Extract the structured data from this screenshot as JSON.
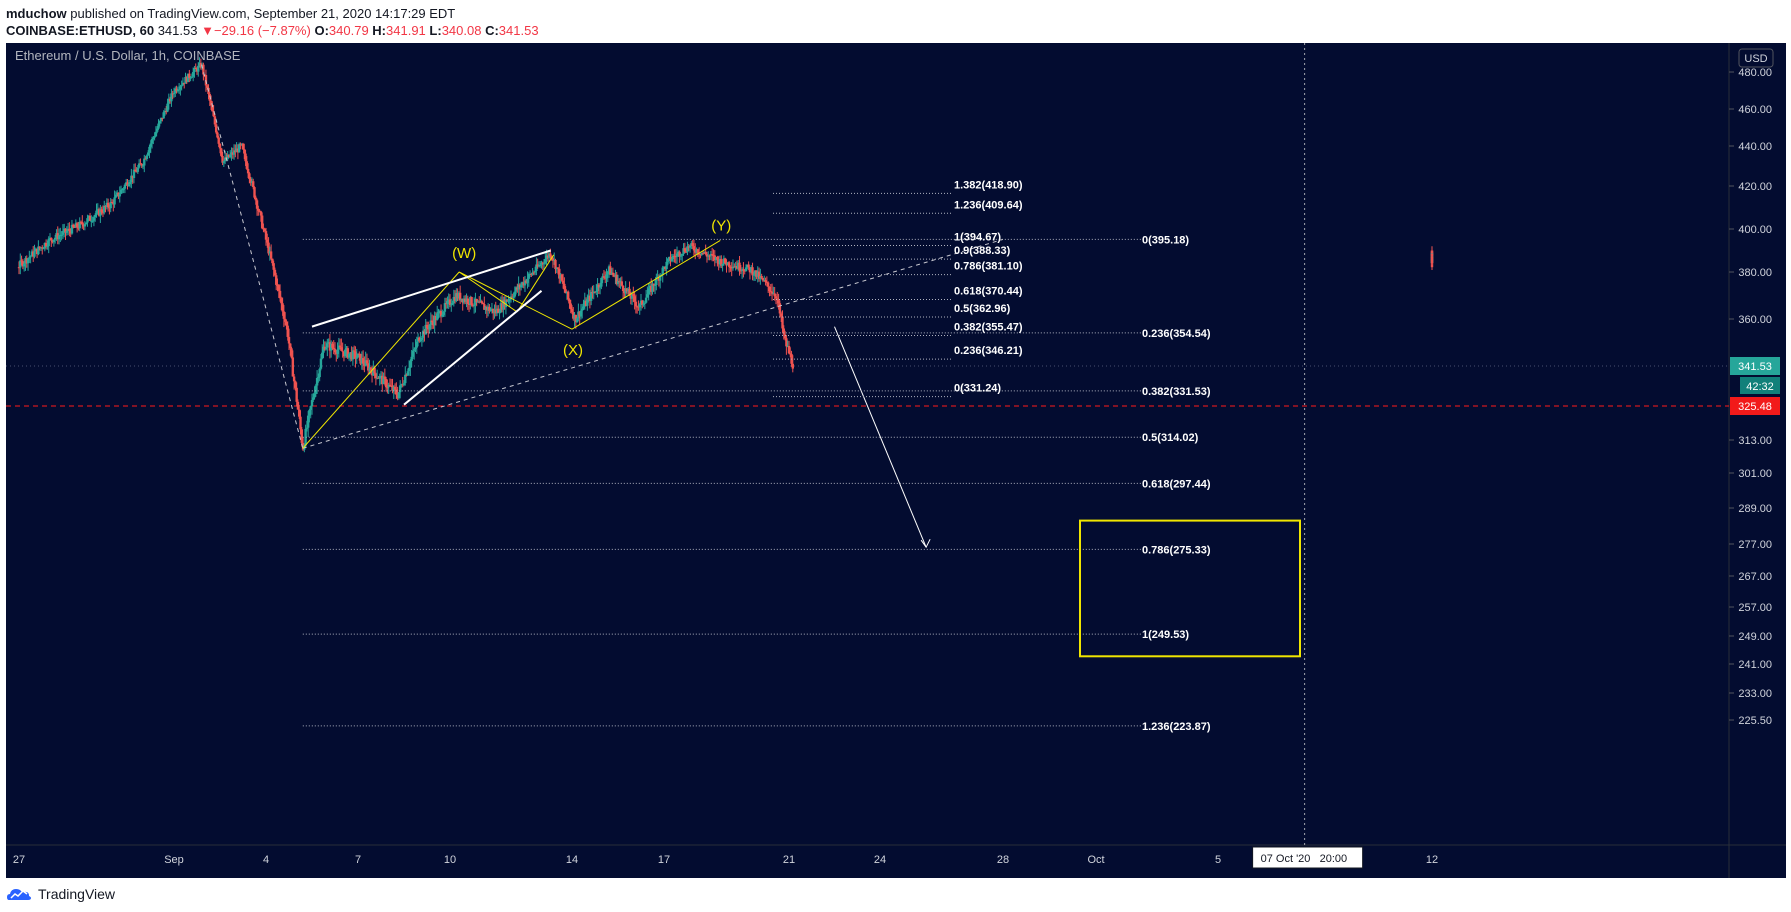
{
  "header": {
    "author": "mduchow",
    "published": "published on TradingView.com, September 21, 2020 14:17:29 EDT",
    "symbol": "COINBASE:ETHUSD, 60",
    "last": "341.53",
    "change_arrow": "▼",
    "change": "−29.16 (−7.87%)",
    "o_label": "O:",
    "o_value": "340.79",
    "h_label": "H:",
    "h_value": "341.91",
    "l_label": "L:",
    "l_value": "340.08",
    "c_label": "C:",
    "c_value": "341.53"
  },
  "footer": {
    "brand": "TradingView"
  },
  "colors": {
    "background": "#030c30",
    "up": "#26a69a",
    "down": "#ef5350",
    "accent": "#f0e600",
    "red": "#ff1a1a"
  },
  "chart_data": {
    "type": "candlestick",
    "title": "Ethereum / U.S. Dollar, 1h, COINBASE",
    "currency": "USD",
    "y_ticks": [
      "480.00",
      "460.00",
      "440.00",
      "420.00",
      "400.00",
      "380.00",
      "360.00",
      "341.53",
      "325.48",
      "313.00",
      "301.00",
      "289.00",
      "277.00",
      "267.00",
      "257.00",
      "249.00",
      "241.00",
      "233.00",
      "225.50"
    ],
    "x_ticks": [
      "27",
      "Sep",
      "4",
      "7",
      "10",
      "14",
      "17",
      "21",
      "24",
      "28",
      "Oct",
      "5",
      "12"
    ],
    "price_label": "341.53",
    "countdown": "42:32",
    "level_label": "325.48",
    "crosshair_date": "07 Oct '20",
    "crosshair_time": "20:00",
    "price_path": [
      {
        "x": "Aug 26",
        "y": 390
      },
      {
        "x": "Aug 27",
        "y": 383
      },
      {
        "x": "Aug 28",
        "y": 395
      },
      {
        "x": "Aug 29",
        "y": 402
      },
      {
        "x": "Aug 30",
        "y": 412
      },
      {
        "x": "Aug 31",
        "y": 432
      },
      {
        "x": "Sep 1",
        "y": 470
      },
      {
        "x": "Sep 2",
        "y": 484
      },
      {
        "x": "Sep 2 pm",
        "y": 432
      },
      {
        "x": "Sep 3",
        "y": 440
      },
      {
        "x": "Sep 4",
        "y": 395
      },
      {
        "x": "Sep 5",
        "y": 355
      },
      {
        "x": "Sep 5 pm",
        "y": 310
      },
      {
        "x": "Sep 6",
        "y": 350
      },
      {
        "x": "Sep 7",
        "y": 345
      },
      {
        "x": "Sep 8",
        "y": 330
      },
      {
        "x": "Sep 9",
        "y": 353
      },
      {
        "x": "Sep 10",
        "y": 370
      },
      {
        "x": "Sep 11",
        "y": 363
      },
      {
        "x": "Sep 12",
        "y": 381
      },
      {
        "x": "Sep 13",
        "y": 389
      },
      {
        "x": "Sep 14",
        "y": 360
      },
      {
        "x": "Sep 15",
        "y": 381
      },
      {
        "x": "Sep 16",
        "y": 365
      },
      {
        "x": "Sep 17",
        "y": 386
      },
      {
        "x": "Sep 18",
        "y": 392
      },
      {
        "x": "Sep 19",
        "y": 385
      },
      {
        "x": "Sep 20",
        "y": 381
      },
      {
        "x": "Sep 21",
        "y": 370
      },
      {
        "x": "Sep 21 am",
        "y": 352
      },
      {
        "x": "Sep 21 pm",
        "y": 341.53
      }
    ],
    "wave_labels": [
      "(W)",
      "(X)",
      "(Y)"
    ],
    "fib_right": [
      "0(395.18)",
      "0.236(354.54)",
      "0.382(331.53)",
      "0.5(314.02)",
      "0.618(297.44)",
      "0.786(275.33)",
      "1(249.53)",
      "1.236(223.87)"
    ],
    "fib_upper": [
      "1.382(418.90)",
      "1.236(409.64)",
      "1(394.67)",
      "0.9(388.33)",
      "0.786(381.10)",
      "0.618(370.44)",
      "0.5(362.96)",
      "0.382(355.47)",
      "0.236(346.21)",
      "0(331.24)"
    ]
  }
}
